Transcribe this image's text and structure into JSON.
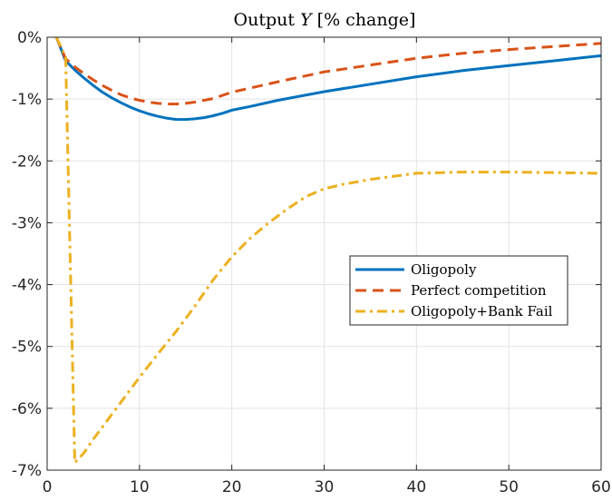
{
  "chart_data": {
    "type": "line",
    "title_prefix": "Output",
    "title_var": "Y",
    "title_suffix": "[% change]",
    "xlim": [
      0,
      60
    ],
    "ylim": [
      -7,
      0
    ],
    "xticks": [
      0,
      10,
      20,
      30,
      40,
      50,
      60
    ],
    "yticks": [
      0,
      -1,
      -2,
      -3,
      -4,
      -5,
      -6,
      -7
    ],
    "ytick_labels": [
      "0%",
      "-1%",
      "-2%",
      "-3%",
      "-4%",
      "-5%",
      "-6%",
      "-7%"
    ],
    "grid": true,
    "legend_position": "middle-right",
    "series": [
      {
        "name": "Oligopoly",
        "color": "#0072BD",
        "style": "solid",
        "points": [
          [
            1,
            0
          ],
          [
            2,
            -0.38
          ],
          [
            3,
            -0.53
          ],
          [
            4,
            -0.66
          ],
          [
            5,
            -0.78
          ],
          [
            6,
            -0.89
          ],
          [
            7,
            -0.98
          ],
          [
            8,
            -1.06
          ],
          [
            9,
            -1.13
          ],
          [
            10,
            -1.19
          ],
          [
            11,
            -1.24
          ],
          [
            12,
            -1.28
          ],
          [
            13,
            -1.31
          ],
          [
            14,
            -1.33
          ],
          [
            15,
            -1.33
          ],
          [
            16,
            -1.32
          ],
          [
            17,
            -1.3
          ],
          [
            18,
            -1.27
          ],
          [
            19,
            -1.23
          ],
          [
            20,
            -1.18
          ],
          [
            22,
            -1.12
          ],
          [
            25,
            -1.02
          ],
          [
            30,
            -0.88
          ],
          [
            35,
            -0.76
          ],
          [
            40,
            -0.64
          ],
          [
            45,
            -0.54
          ],
          [
            50,
            -0.46
          ],
          [
            55,
            -0.38
          ],
          [
            60,
            -0.3
          ]
        ]
      },
      {
        "name": "Perfect competition",
        "color": "#D95319",
        "style": "dashed",
        "points": [
          [
            1,
            0
          ],
          [
            2,
            -0.35
          ],
          [
            3,
            -0.48
          ],
          [
            4,
            -0.59
          ],
          [
            5,
            -0.69
          ],
          [
            6,
            -0.78
          ],
          [
            7,
            -0.86
          ],
          [
            8,
            -0.93
          ],
          [
            9,
            -0.98
          ],
          [
            10,
            -1.02
          ],
          [
            11,
            -1.05
          ],
          [
            12,
            -1.07
          ],
          [
            13,
            -1.08
          ],
          [
            14,
            -1.08
          ],
          [
            15,
            -1.07
          ],
          [
            16,
            -1.05
          ],
          [
            17,
            -1.02
          ],
          [
            18,
            -0.99
          ],
          [
            19,
            -0.94
          ],
          [
            20,
            -0.89
          ],
          [
            25,
            -0.72
          ],
          [
            30,
            -0.56
          ],
          [
            35,
            -0.45
          ],
          [
            40,
            -0.34
          ],
          [
            45,
            -0.26
          ],
          [
            50,
            -0.2
          ],
          [
            55,
            -0.15
          ],
          [
            60,
            -0.1
          ]
        ]
      },
      {
        "name": "Oligopoly+Bank Fail",
        "color": "#EDB120",
        "style": "dashdot",
        "points": [
          [
            1,
            0
          ],
          [
            2,
            -0.32
          ],
          [
            3,
            -6.88
          ],
          [
            4,
            -6.72
          ],
          [
            5,
            -6.5
          ],
          [
            6,
            -6.3
          ],
          [
            8,
            -5.9
          ],
          [
            10,
            -5.5
          ],
          [
            12,
            -5.12
          ],
          [
            14,
            -4.75
          ],
          [
            16,
            -4.35
          ],
          [
            18,
            -3.92
          ],
          [
            20,
            -3.55
          ],
          [
            22,
            -3.25
          ],
          [
            24,
            -3.0
          ],
          [
            26,
            -2.78
          ],
          [
            28,
            -2.58
          ],
          [
            30,
            -2.45
          ],
          [
            32,
            -2.38
          ],
          [
            35,
            -2.3
          ],
          [
            40,
            -2.2
          ],
          [
            45,
            -2.18
          ],
          [
            50,
            -2.18
          ],
          [
            55,
            -2.19
          ],
          [
            60,
            -2.2
          ]
        ]
      }
    ]
  }
}
